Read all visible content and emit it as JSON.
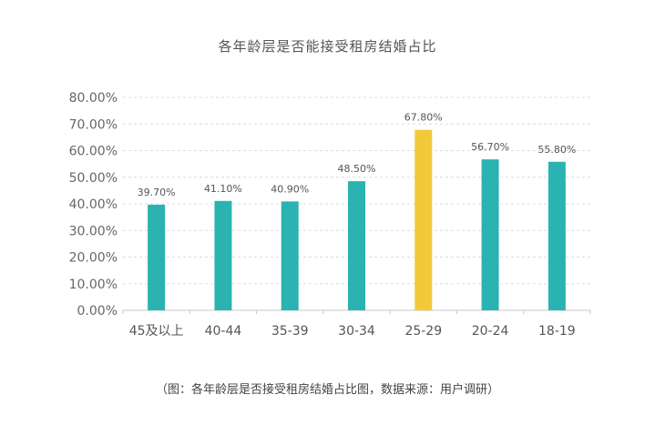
{
  "chart_data": {
    "type": "bar",
    "title": "各年龄层是否能接受租房结婚占比",
    "xlabel": "",
    "ylabel": "",
    "categories": [
      "45及以上",
      "40-44",
      "35-39",
      "30-34",
      "25-29",
      "20-24",
      "18-19"
    ],
    "values": [
      39.7,
      41.1,
      40.9,
      48.5,
      67.8,
      56.7,
      55.8
    ],
    "value_labels": [
      "39.70%",
      "41.10%",
      "40.90%",
      "48.50%",
      "67.80%",
      "56.70%",
      "55.80%"
    ],
    "y_ticks": [
      "0.00%",
      "10.00%",
      "20.00%",
      "30.00%",
      "40.00%",
      "50.00%",
      "60.00%",
      "70.00%",
      "80.00%"
    ],
    "ylim": [
      0,
      80
    ],
    "grid": true,
    "colors": {
      "default": "#2ab3b0",
      "highlight": "#f2c93b",
      "highlight_category": "25-29"
    }
  },
  "caption": "（图：各年龄层是否接受租房结婚占比图，数据来源：用户调研）"
}
